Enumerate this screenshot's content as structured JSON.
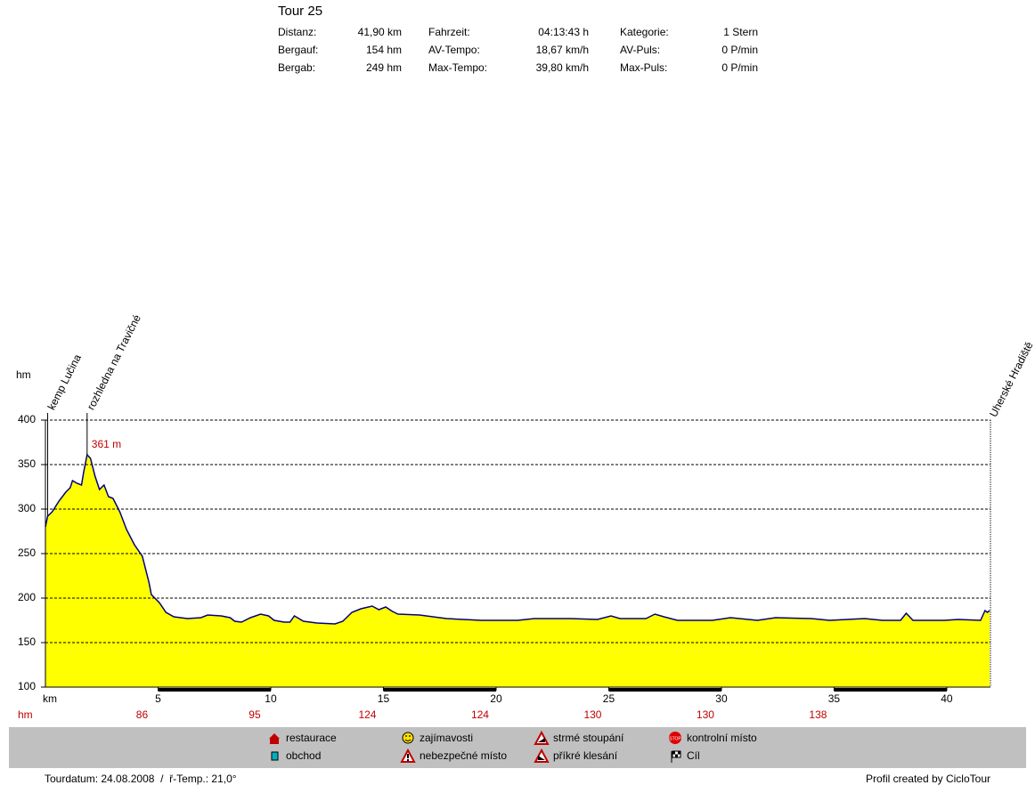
{
  "header": {
    "title": "Tour 25",
    "stats": [
      [
        "Distanz:",
        "41,90 km",
        "Fahrzeit:",
        "04:13:43 h",
        "Kategorie:",
        "1 Stern"
      ],
      [
        "Bergauf:",
        "154 hm",
        "AV-Tempo:",
        "18,67 km/h",
        "AV-Puls:",
        "0 P/min"
      ],
      [
        "Bergab:",
        "249 hm",
        "Max-Tempo:",
        "39,80 km/h",
        "Max-Puls:",
        "0 P/min"
      ]
    ]
  },
  "chart_data": {
    "type": "area",
    "y_label": "hm",
    "x_label": "km",
    "x": [
      0,
      0.1,
      0.3,
      0.6,
      0.9,
      1.1,
      1.2,
      1.4,
      1.6,
      1.7,
      1.85,
      2.0,
      2.2,
      2.4,
      2.6,
      2.8,
      3.0,
      3.3,
      3.6,
      3.95,
      4.3,
      4.6,
      4.7,
      5.05,
      5.35,
      5.7,
      6.3,
      6.9,
      7.2,
      7.8,
      8.2,
      8.4,
      8.7,
      9.1,
      9.55,
      9.9,
      10.15,
      10.6,
      10.85,
      11.05,
      11.45,
      12.05,
      12.85,
      13.2,
      13.6,
      14.0,
      14.5,
      14.8,
      15.1,
      15.4,
      15.65,
      16.6,
      17.8,
      18.55,
      19.35,
      20.95,
      21.7,
      23.3,
      24.5,
      25.1,
      25.5,
      26.65,
      27.05,
      27.45,
      28.05,
      29.6,
      30.4,
      31.6,
      32.4,
      34.0,
      34.8,
      36.35,
      37.15,
      37.95,
      38.2,
      38.5,
      39.9,
      40.5,
      41.5,
      41.7,
      41.8,
      41.9
    ],
    "values": [
      280,
      292,
      297,
      309,
      319,
      324,
      332,
      329,
      327,
      342,
      361,
      357,
      337,
      322,
      327,
      314,
      312,
      297,
      277,
      260,
      247,
      217,
      204,
      195,
      184,
      179,
      177,
      178,
      181,
      180,
      178,
      174,
      173,
      178,
      182,
      180,
      175,
      173,
      173,
      180,
      174,
      172,
      171,
      174,
      184,
      188,
      191,
      187,
      190,
      185,
      182,
      181,
      177,
      176,
      175,
      175,
      177,
      177,
      176,
      180,
      177,
      177,
      182,
      179,
      175,
      175,
      178,
      175,
      178,
      177,
      175,
      177,
      175,
      175,
      183,
      175,
      175,
      176,
      175,
      186,
      184,
      186
    ],
    "fill_color": "#ffff00",
    "line_color": "#000080",
    "xlim": [
      0,
      41.9
    ],
    "xticks": [
      5,
      10,
      15,
      20,
      25,
      30,
      35,
      40
    ],
    "ylim": [
      100,
      400
    ],
    "yticks": [
      100,
      150,
      200,
      250,
      300,
      350,
      400
    ],
    "grid": true,
    "annotations": [
      {
        "text": "361 m",
        "x": 1.85,
        "y": 361
      }
    ],
    "waypoints": [
      {
        "label": "kemp Lučina",
        "x": 0.1
      },
      {
        "label": "rozhledna na Travičné",
        "x": 1.85
      },
      {
        "label": "Uherské Hradiště",
        "x": 41.9
      }
    ],
    "climb_row": {
      "label": "hm",
      "values": [
        86,
        95,
        124,
        124,
        130,
        130,
        138
      ]
    }
  },
  "legend": {
    "items": [
      "restaurace",
      "zajímavosti",
      "strmé stoupání",
      "kontrolní místo",
      "obchod",
      "nebezpečné místo",
      "příkré klesání",
      "Cíl"
    ]
  },
  "footer": {
    "left": "Tourdatum: 24.08.2008  /  ř-Temp.: 21,0°",
    "right": "Profil created by CicloTour"
  }
}
